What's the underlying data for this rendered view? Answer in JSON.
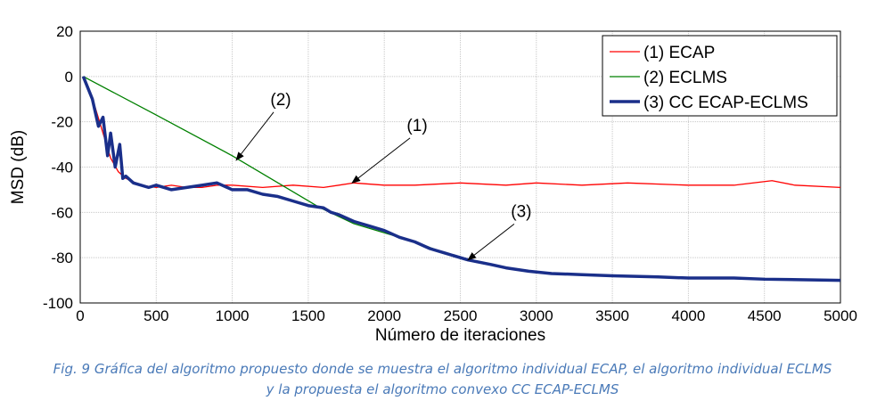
{
  "chart_data": {
    "type": "line",
    "xlabel": "Número de iteraciones",
    "ylabel": "MSD (dB)",
    "xlim": [
      0,
      5000
    ],
    "ylim": [
      -100,
      20
    ],
    "xticks": [
      0,
      500,
      1000,
      1500,
      2000,
      2500,
      3000,
      3500,
      4000,
      4500,
      5000
    ],
    "yticks": [
      20,
      0,
      -20,
      -40,
      -60,
      -80,
      -100
    ],
    "grid": true,
    "legend": "top-right",
    "series": [
      {
        "name": "(1) ECAP",
        "color": "#ff0000",
        "width": 1.3,
        "x": [
          20,
          100,
          150,
          200,
          250,
          300,
          400,
          500,
          600,
          700,
          800,
          900,
          1000,
          1200,
          1400,
          1600,
          1800,
          2000,
          2200,
          2500,
          2800,
          3000,
          3300,
          3600,
          4000,
          4300,
          4550,
          4700,
          5000
        ],
        "y": [
          0,
          -14,
          -25,
          -36,
          -42,
          -45,
          -48,
          -49,
          -48,
          -49,
          -49,
          -48,
          -48,
          -49,
          -48,
          -49,
          -47,
          -48,
          -48,
          -47,
          -48,
          -47,
          -48,
          -47,
          -48,
          -48,
          -46,
          -48,
          -49
        ]
      },
      {
        "name": "(2) ECLMS",
        "color": "#008000",
        "width": 1.3,
        "x": [
          20,
          500,
          1000,
          1565,
          1800,
          2000,
          2200,
          2400,
          2600,
          2800,
          3000,
          3500,
          4000,
          4500,
          5000
        ],
        "y": [
          0,
          -17,
          -35,
          -57.5,
          -65,
          -69,
          -73,
          -78,
          -82,
          -84.5,
          -86.5,
          -88,
          -89,
          -89.5,
          -90
        ]
      },
      {
        "name": "(3) CC ECAP-ECLMS",
        "color": "#1a2f8a",
        "width": 3.5,
        "x": [
          20,
          80,
          120,
          150,
          180,
          200,
          230,
          260,
          280,
          300,
          350,
          450,
          500,
          600,
          700,
          800,
          900,
          1000,
          1100,
          1200,
          1300,
          1400,
          1500,
          1600,
          1650,
          1700,
          1800,
          1900,
          2000,
          2100,
          2200,
          2300,
          2400,
          2550,
          2700,
          2800,
          2950,
          3100,
          3300,
          3500,
          3800,
          4000,
          4300,
          4500,
          5000
        ],
        "y": [
          0,
          -10,
          -22,
          -18,
          -35,
          -25,
          -40,
          -30,
          -45,
          -44,
          -47,
          -49,
          -48,
          -50,
          -49,
          -48,
          -47,
          -50,
          -50,
          -52,
          -53,
          -55,
          -57,
          -58,
          -60,
          -61,
          -64,
          -66,
          -68,
          -71,
          -73,
          -76,
          -78,
          -81,
          -83,
          -84.5,
          -86,
          -87,
          -87.5,
          -88,
          -88.5,
          -89,
          -89,
          -89.5,
          -90
        ]
      }
    ],
    "annotations": [
      {
        "text": "(2)",
        "x": 1319,
        "y": -12.6,
        "ax": 1026,
        "ay": -37
      },
      {
        "text": "(1)",
        "x": 2216,
        "y": -24,
        "ax": 1788,
        "ay": -47
      },
      {
        "text": "(3)",
        "x": 2901,
        "y": -62,
        "ax": 2550,
        "ay": -81
      }
    ]
  },
  "caption": {
    "line1": "Fig. 9 Gráfica del algoritmo propuesto donde se muestra el algoritmo individual ECAP, el algoritmo individual ECLMS",
    "line2": "y la propuesta el algoritmo convexo CC ECAP-ECLMS"
  }
}
